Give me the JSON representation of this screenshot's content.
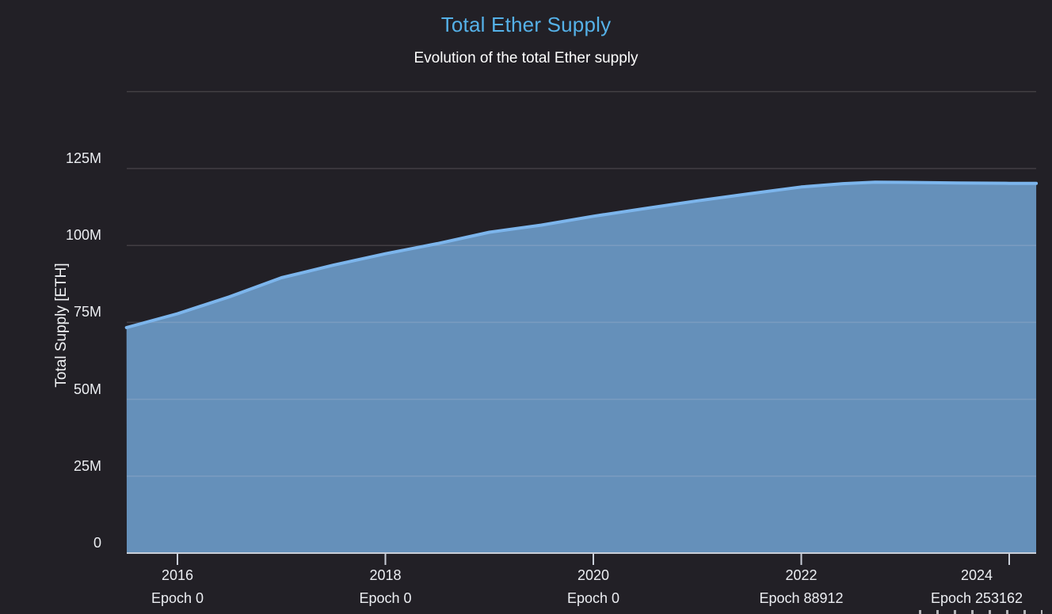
{
  "header": {
    "title": "Total Ether Supply",
    "subtitle": "Evolution of the total Ether supply"
  },
  "colors": {
    "background": "#222026",
    "title_accent": "#55b1e8",
    "text": "#eceef2",
    "series_line": "#7cb5ec",
    "series_fill": "rgba(124,181,236,0.75)",
    "gridline": "rgba(235,226,222,0.16)",
    "axis_line": "#c9ced8"
  },
  "chart_data": {
    "type": "area",
    "title": "Total Ether Supply",
    "subtitle": "Evolution of the total Ether supply",
    "xlabel": "",
    "ylabel": "Total Supply [ETH]",
    "unit": "millions of ETH",
    "ylim": [
      0,
      150
    ],
    "xlim": [
      2015.51,
      2024.26
    ],
    "grid": "horizontal",
    "legend_position": "none",
    "y_ticks": [
      {
        "value": 0,
        "label": "0"
      },
      {
        "value": 25,
        "label": "25M"
      },
      {
        "value": 50,
        "label": "50M"
      },
      {
        "value": 75,
        "label": "75M"
      },
      {
        "value": 100,
        "label": "100M"
      },
      {
        "value": 125,
        "label": "125M"
      },
      {
        "value": 150,
        "label": ""
      }
    ],
    "x_ticks": [
      {
        "year": 2016,
        "label": "2016",
        "sublabel": "Epoch 0"
      },
      {
        "year": 2018,
        "label": "2018",
        "sublabel": "Epoch 0"
      },
      {
        "year": 2020,
        "label": "2020",
        "sublabel": "Epoch 0"
      },
      {
        "year": 2022,
        "label": "2022",
        "sublabel": "Epoch 88912"
      },
      {
        "year": 2024,
        "label": "2024",
        "sublabel": "Epoch 253162"
      }
    ],
    "series": [
      {
        "name": "Total Supply [ETH]",
        "points": [
          [
            2015.51,
            73.3
          ],
          [
            2016.0,
            77.8
          ],
          [
            2016.5,
            83.3
          ],
          [
            2017.0,
            89.5
          ],
          [
            2017.5,
            93.6
          ],
          [
            2018.0,
            97.3
          ],
          [
            2018.5,
            100.6
          ],
          [
            2019.0,
            104.3
          ],
          [
            2019.5,
            106.6
          ],
          [
            2020.0,
            109.5
          ],
          [
            2020.5,
            112.0
          ],
          [
            2021.0,
            114.5
          ],
          [
            2021.5,
            116.8
          ],
          [
            2022.0,
            119.0
          ],
          [
            2022.4,
            120.1
          ],
          [
            2022.71,
            120.55
          ],
          [
            2023.0,
            120.5
          ],
          [
            2023.5,
            120.3
          ],
          [
            2024.0,
            120.2
          ],
          [
            2024.26,
            120.2
          ]
        ]
      }
    ]
  }
}
